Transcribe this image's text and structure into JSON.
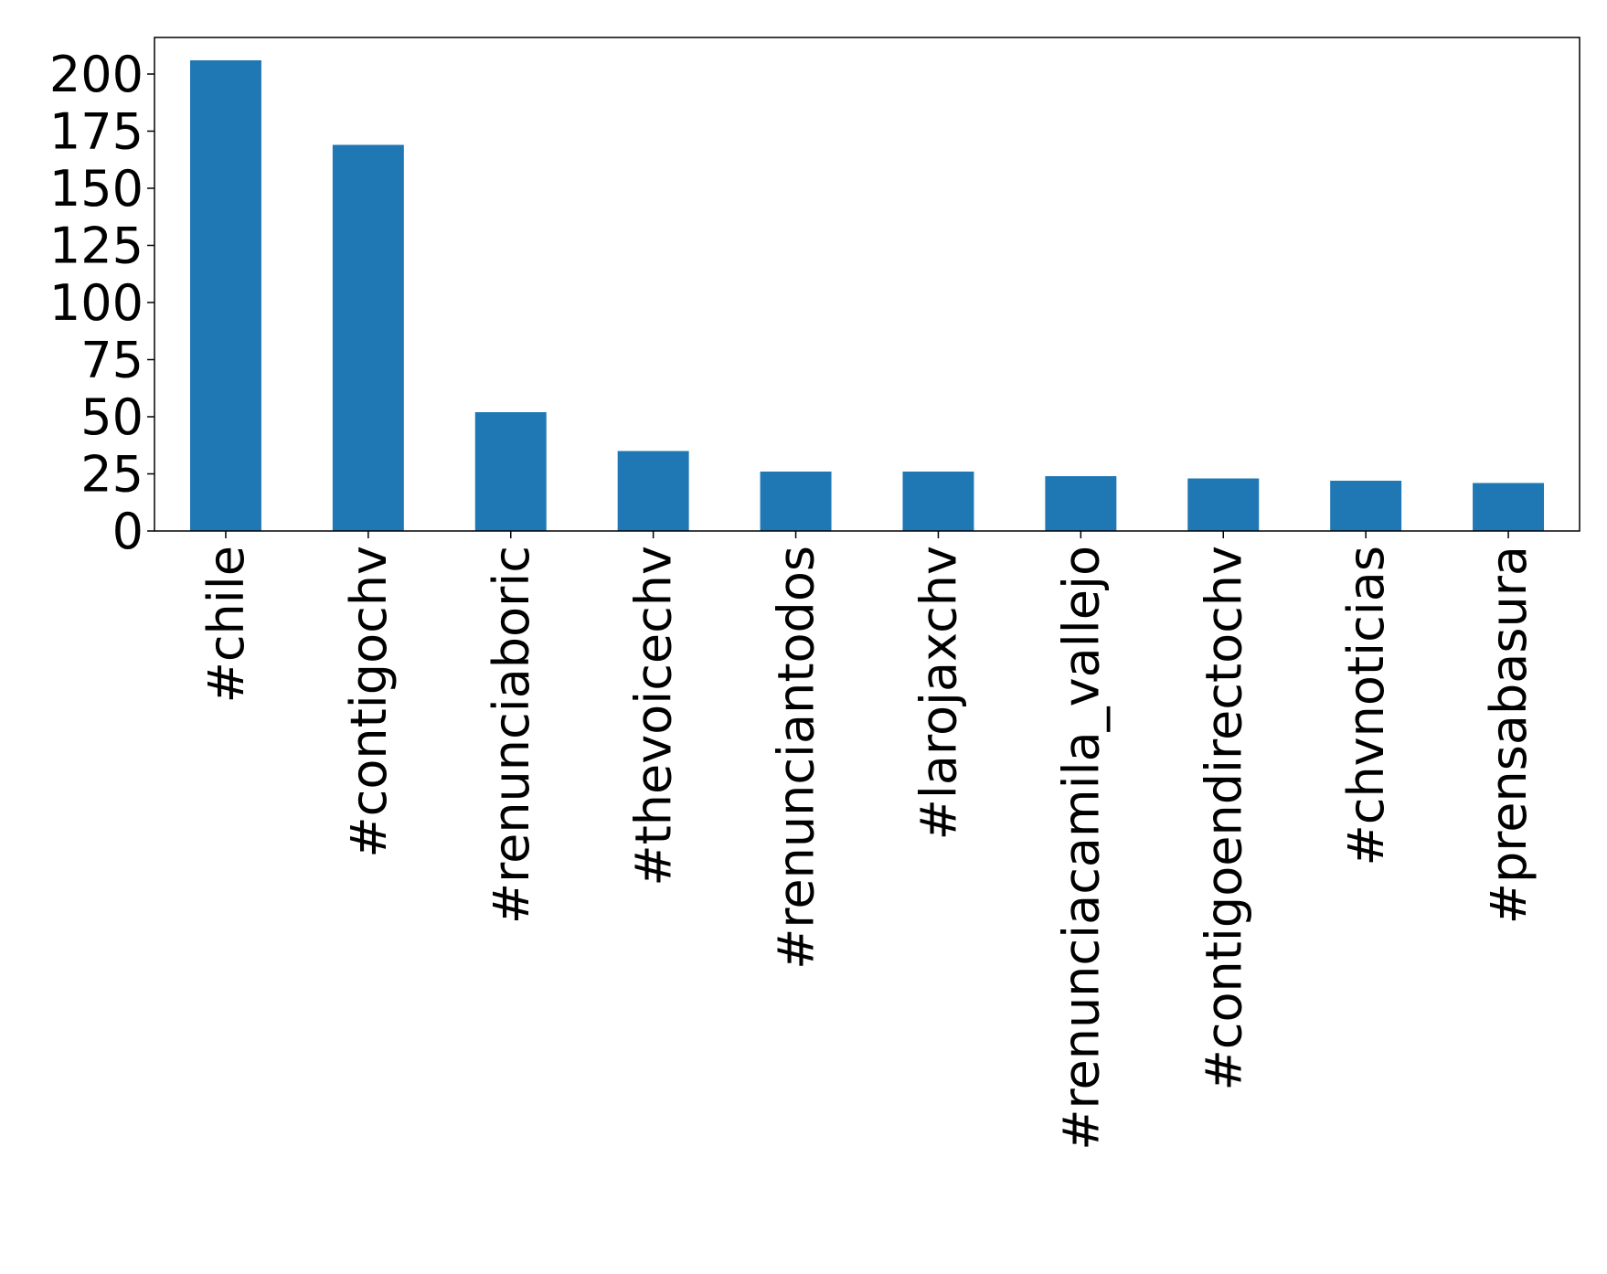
{
  "chart_data": {
    "type": "bar",
    "categories": [
      "#chile",
      "#contigochv",
      "#renunciaboric",
      "#thevoicechv",
      "#renunciantodos",
      "#larojaxchv",
      "#renunciacamila_vallejo",
      "#contigoendirectochv",
      "#chvnoticias",
      "#prensabasura"
    ],
    "values": [
      206,
      169,
      52,
      35,
      26,
      26,
      24,
      23,
      22,
      21
    ],
    "color": "#1f77b4",
    "ylim": [
      0,
      216
    ],
    "yticks": [
      0,
      25,
      50,
      75,
      100,
      125,
      150,
      175,
      200
    ],
    "grid": false
  }
}
